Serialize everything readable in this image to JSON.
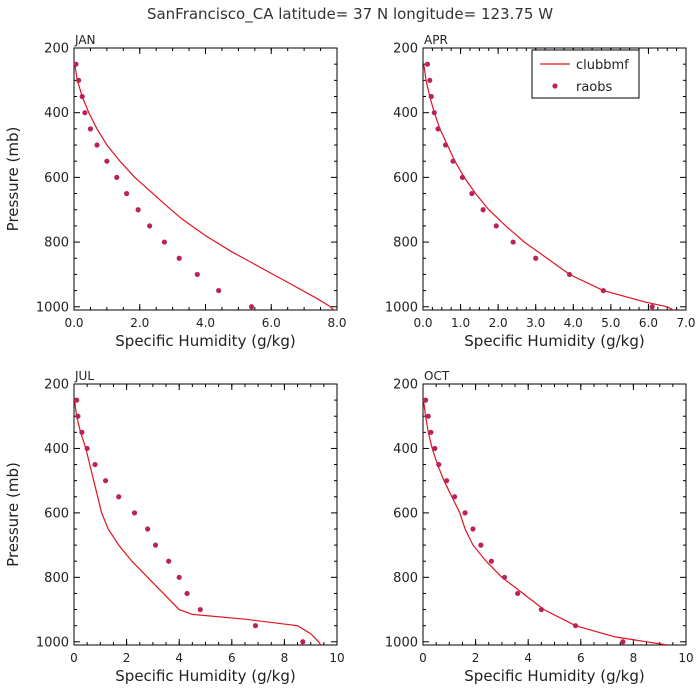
{
  "figure_title": "SanFrancisco_CA  latitude= 37 N longitude= 123.75 W",
  "colors": {
    "model": "#e0141e",
    "obs": "#b8245a",
    "axis": "#000000",
    "text": "#222222"
  },
  "legend": {
    "placement": "top-right of APR panel",
    "entries": [
      "clubbmf",
      "raobs"
    ]
  },
  "chart_data": [
    {
      "type": "line",
      "panel": "JAN",
      "xlabel": "Specific Humidity (g/kg)",
      "ylabel": "Pressure (mb)",
      "xlim": [
        0,
        8
      ],
      "ylim": [
        1010,
        200
      ],
      "xticks": [
        0,
        2,
        4,
        6,
        8
      ],
      "xtick_labels": [
        "0.0",
        "2.0",
        "4.0",
        "6.0",
        "8.0"
      ],
      "yticks": [
        200,
        400,
        600,
        800,
        1000
      ],
      "series": [
        {
          "name": "clubbmf",
          "style": "line",
          "points": [
            [
              0.02,
              250
            ],
            [
              0.1,
              300
            ],
            [
              0.25,
              350
            ],
            [
              0.45,
              400
            ],
            [
              0.7,
              450
            ],
            [
              1.0,
              500
            ],
            [
              1.4,
              550
            ],
            [
              1.85,
              600
            ],
            [
              2.4,
              650
            ],
            [
              2.95,
              700
            ],
            [
              3.3,
              730
            ],
            [
              4.0,
              780
            ],
            [
              4.8,
              830
            ],
            [
              5.7,
              880
            ],
            [
              6.6,
              930
            ],
            [
              7.4,
              975
            ],
            [
              7.8,
              1000
            ],
            [
              7.95,
              1015
            ]
          ]
        },
        {
          "name": "raobs",
          "style": "markers",
          "points": [
            [
              0.06,
              250
            ],
            [
              0.14,
              300
            ],
            [
              0.25,
              350
            ],
            [
              0.33,
              400
            ],
            [
              0.5,
              450
            ],
            [
              0.7,
              500
            ],
            [
              1.0,
              550
            ],
            [
              1.3,
              600
            ],
            [
              1.6,
              650
            ],
            [
              1.95,
              700
            ],
            [
              2.3,
              750
            ],
            [
              2.75,
              800
            ],
            [
              3.2,
              850
            ],
            [
              3.75,
              900
            ],
            [
              4.4,
              950
            ],
            [
              5.4,
              1000
            ]
          ]
        }
      ]
    },
    {
      "type": "line",
      "panel": "APR",
      "xlabel": "Specific Humidity (g/kg)",
      "ylabel": "",
      "xlim": [
        0,
        7
      ],
      "ylim": [
        1010,
        200
      ],
      "xticks": [
        0,
        1,
        2,
        3,
        4,
        5,
        6,
        7
      ],
      "xtick_labels": [
        "0.0",
        "1.0",
        "2.0",
        "3.0",
        "4.0",
        "5.0",
        "6.0",
        "7.0"
      ],
      "yticks": [
        200,
        400,
        600,
        800,
        1000
      ],
      "series": [
        {
          "name": "clubbmf",
          "style": "line",
          "points": [
            [
              0.02,
              250
            ],
            [
              0.08,
              300
            ],
            [
              0.18,
              350
            ],
            [
              0.3,
              400
            ],
            [
              0.45,
              450
            ],
            [
              0.65,
              500
            ],
            [
              0.85,
              550
            ],
            [
              1.1,
              600
            ],
            [
              1.4,
              650
            ],
            [
              1.75,
              700
            ],
            [
              2.2,
              750
            ],
            [
              2.7,
              800
            ],
            [
              3.3,
              850
            ],
            [
              3.9,
              900
            ],
            [
              4.8,
              950
            ],
            [
              5.9,
              985
            ],
            [
              6.5,
              1000
            ],
            [
              6.7,
              1012
            ]
          ]
        },
        {
          "name": "raobs",
          "style": "markers",
          "points": [
            [
              0.12,
              250
            ],
            [
              0.18,
              300
            ],
            [
              0.22,
              350
            ],
            [
              0.3,
              400
            ],
            [
              0.4,
              450
            ],
            [
              0.6,
              500
            ],
            [
              0.8,
              550
            ],
            [
              1.05,
              600
            ],
            [
              1.3,
              650
            ],
            [
              1.6,
              700
            ],
            [
              1.95,
              750
            ],
            [
              2.4,
              800
            ],
            [
              3.0,
              850
            ],
            [
              3.9,
              900
            ],
            [
              4.8,
              950
            ],
            [
              6.1,
              1000
            ]
          ]
        }
      ]
    },
    {
      "type": "line",
      "panel": "JUL",
      "xlabel": "Specific Humidity (g/kg)",
      "ylabel": "Pressure (mb)",
      "xlim": [
        0,
        10
      ],
      "ylim": [
        1010,
        200
      ],
      "xticks": [
        0,
        2,
        4,
        6,
        8,
        10
      ],
      "xtick_labels": [
        "0",
        "2",
        "4",
        "6",
        "8",
        "10"
      ],
      "yticks": [
        200,
        400,
        600,
        800,
        1000
      ],
      "series": [
        {
          "name": "clubbmf",
          "style": "line",
          "points": [
            [
              0.02,
              250
            ],
            [
              0.1,
              300
            ],
            [
              0.25,
              350
            ],
            [
              0.45,
              400
            ],
            [
              0.6,
              450
            ],
            [
              0.75,
              500
            ],
            [
              0.9,
              550
            ],
            [
              1.05,
              600
            ],
            [
              1.3,
              650
            ],
            [
              1.7,
              700
            ],
            [
              2.2,
              750
            ],
            [
              2.8,
              800
            ],
            [
              3.4,
              850
            ],
            [
              4.0,
              900
            ],
            [
              4.5,
              915
            ],
            [
              6.5,
              930
            ],
            [
              8.5,
              950
            ],
            [
              9.0,
              975
            ],
            [
              9.3,
              1000
            ],
            [
              9.4,
              1012
            ]
          ]
        },
        {
          "name": "raobs",
          "style": "markers",
          "points": [
            [
              0.1,
              250
            ],
            [
              0.15,
              300
            ],
            [
              0.3,
              350
            ],
            [
              0.5,
              400
            ],
            [
              0.8,
              450
            ],
            [
              1.2,
              500
            ],
            [
              1.7,
              550
            ],
            [
              2.3,
              600
            ],
            [
              2.8,
              650
            ],
            [
              3.1,
              700
            ],
            [
              3.6,
              750
            ],
            [
              4.0,
              800
            ],
            [
              4.3,
              850
            ],
            [
              4.8,
              900
            ],
            [
              6.9,
              950
            ],
            [
              8.7,
              1000
            ]
          ]
        }
      ]
    },
    {
      "type": "line",
      "panel": "OCT",
      "xlabel": "Specific Humidity (g/kg)",
      "ylabel": "",
      "xlim": [
        0,
        10
      ],
      "ylim": [
        1010,
        200
      ],
      "xticks": [
        0,
        2,
        4,
        6,
        8,
        10
      ],
      "xtick_labels": [
        "0",
        "2",
        "4",
        "6",
        "8",
        "10"
      ],
      "yticks": [
        200,
        400,
        600,
        800,
        1000
      ],
      "series": [
        {
          "name": "clubbmf",
          "style": "line",
          "points": [
            [
              0.02,
              250
            ],
            [
              0.1,
              300
            ],
            [
              0.2,
              350
            ],
            [
              0.35,
              400
            ],
            [
              0.55,
              450
            ],
            [
              0.8,
              500
            ],
            [
              1.1,
              550
            ],
            [
              1.4,
              600
            ],
            [
              1.6,
              650
            ],
            [
              1.9,
              700
            ],
            [
              2.4,
              750
            ],
            [
              3.0,
              800
            ],
            [
              3.8,
              850
            ],
            [
              4.6,
              900
            ],
            [
              5.8,
              950
            ],
            [
              7.3,
              985
            ],
            [
              8.5,
              1000
            ],
            [
              9.3,
              1010
            ]
          ]
        },
        {
          "name": "raobs",
          "style": "markers",
          "points": [
            [
              0.1,
              250
            ],
            [
              0.2,
              300
            ],
            [
              0.3,
              350
            ],
            [
              0.45,
              400
            ],
            [
              0.6,
              450
            ],
            [
              0.9,
              500
            ],
            [
              1.2,
              550
            ],
            [
              1.6,
              600
            ],
            [
              1.9,
              650
            ],
            [
              2.2,
              700
            ],
            [
              2.6,
              750
            ],
            [
              3.1,
              800
            ],
            [
              3.6,
              850
            ],
            [
              4.5,
              900
            ],
            [
              5.8,
              950
            ],
            [
              7.6,
              1000
            ]
          ]
        }
      ]
    }
  ]
}
